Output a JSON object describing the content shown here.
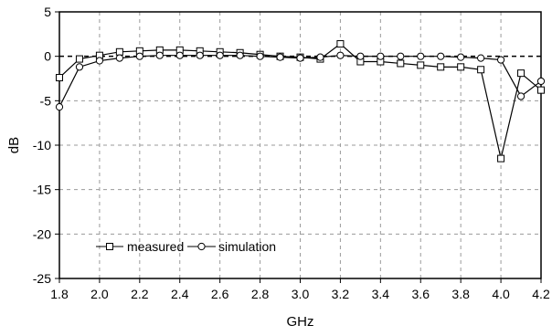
{
  "chart_data": {
    "type": "line",
    "xlabel": "GHz",
    "ylabel": "dB",
    "xlim": [
      1.8,
      4.2
    ],
    "ylim": [
      -25,
      5
    ],
    "xticks": [
      "1.8",
      "2.0",
      "2.2",
      "2.4",
      "2.6",
      "2.8",
      "3.0",
      "3.2",
      "3.4",
      "3.6",
      "3.8",
      "4.0",
      "4.2"
    ],
    "yticks": [
      "5",
      "0",
      "-5",
      "-10",
      "-15",
      "-20",
      "-25"
    ],
    "grid": true,
    "reference_line": {
      "y": 0,
      "style": "dashed"
    },
    "legend_position": "bottom-left",
    "x": [
      1.8,
      1.9,
      2.0,
      2.1,
      2.2,
      2.3,
      2.4,
      2.5,
      2.6,
      2.7,
      2.8,
      2.9,
      3.0,
      3.1,
      3.2,
      3.3,
      3.4,
      3.5,
      3.6,
      3.7,
      3.8,
      3.9,
      4.0,
      4.1,
      4.2
    ],
    "series": [
      {
        "name": "measured",
        "marker": "square",
        "values": [
          -2.4,
          -0.3,
          0.1,
          0.5,
          0.6,
          0.7,
          0.7,
          0.6,
          0.5,
          0.4,
          0.2,
          0.0,
          -0.1,
          -0.3,
          1.4,
          -0.6,
          -0.6,
          -0.8,
          -1.0,
          -1.2,
          -1.2,
          -1.5,
          -11.5,
          -1.9,
          -3.8
        ]
      },
      {
        "name": "simulation",
        "marker": "circle",
        "values": [
          -5.7,
          -1.2,
          -0.5,
          -0.2,
          0.0,
          0.1,
          0.1,
          0.1,
          0.1,
          0.1,
          0.0,
          -0.1,
          -0.2,
          -0.1,
          0.1,
          0.0,
          0.0,
          0.0,
          0.0,
          0.0,
          -0.1,
          -0.2,
          -0.4,
          -4.5,
          -2.8
        ]
      }
    ],
    "colors": {
      "line": "#000000",
      "grid": "#9a9a9a",
      "background": "#ffffff"
    }
  }
}
